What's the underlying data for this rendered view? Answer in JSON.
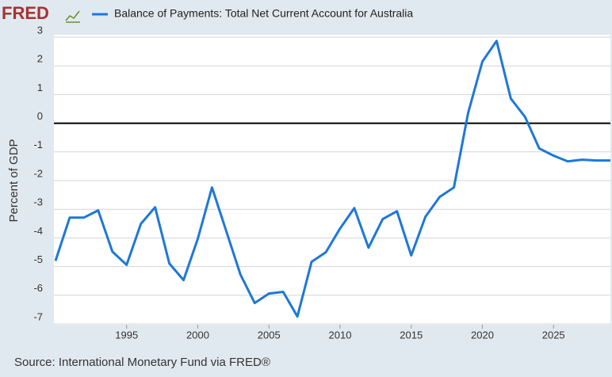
{
  "logo": "FRED",
  "chart_data": {
    "type": "line",
    "title": "Balance of Payments: Total Net Current Account for Australia",
    "y_label": "Percent of GDP",
    "source": "Source: International Monetary Fund via FRED®",
    "x": [
      1990,
      1991,
      1992,
      1993,
      1994,
      1995,
      1996,
      1997,
      1998,
      1999,
      2000,
      2001,
      2002,
      2003,
      2004,
      2005,
      2006,
      2007,
      2008,
      2009,
      2010,
      2011,
      2012,
      2013,
      2014,
      2015,
      2016,
      2017,
      2018,
      2019,
      2020,
      2021,
      2022,
      2023,
      2024,
      2025,
      2026,
      2027,
      2028,
      2029
    ],
    "series": [
      {
        "name": "Balance of Payments: Total Net Current Account for Australia",
        "color": "#1e78d7",
        "values": [
          -4.8,
          -3.29,
          -3.29,
          -3.04,
          -4.48,
          -4.94,
          -3.51,
          -2.93,
          -4.89,
          -5.47,
          -4.03,
          -2.24,
          -3.76,
          -5.28,
          -6.27,
          -5.94,
          -5.88,
          -6.74,
          -4.83,
          -4.5,
          -3.67,
          -2.96,
          -4.34,
          -3.34,
          -3.07,
          -4.61,
          -3.26,
          -2.57,
          -2.24,
          0.36,
          2.15,
          2.87,
          0.86,
          0.22,
          -0.88,
          -1.13,
          -1.33,
          -1.27,
          -1.3,
          -1.3
        ]
      }
    ],
    "xlim": [
      1990,
      2029
    ],
    "xticks": [
      1995,
      2000,
      2005,
      2010,
      2015,
      2020,
      2025
    ],
    "ylim": [
      -7,
      3
    ],
    "yticks": [
      3,
      2,
      1,
      0,
      -1,
      -2,
      -3,
      -4,
      -5,
      -6,
      -7
    ],
    "grid": true,
    "zero_line": true
  }
}
